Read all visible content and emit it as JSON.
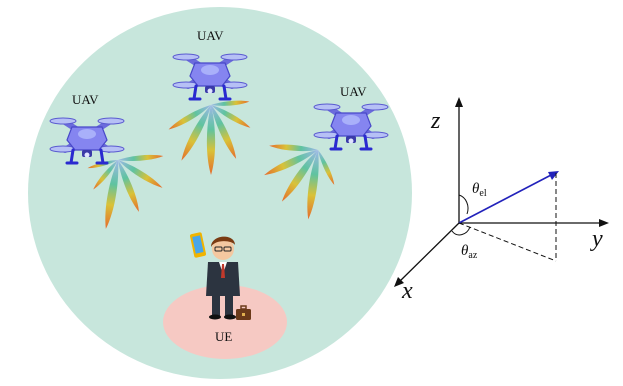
{
  "scene": {
    "uav_labels": [
      "UAV",
      "UAV",
      "UAV"
    ],
    "ue_label": "UE"
  },
  "axes": {
    "z_label": "z",
    "y_label": "y",
    "x_label": "x",
    "theta_el_symbol": "θ",
    "theta_el_sub": "el",
    "theta_az_symbol": "θ",
    "theta_az_sub": "az"
  },
  "colors": {
    "coverage": "#c7e6dc",
    "ue_zone": "#f6c9c3",
    "uav_body": "#7f7ff2",
    "vector": "#2222bb"
  }
}
